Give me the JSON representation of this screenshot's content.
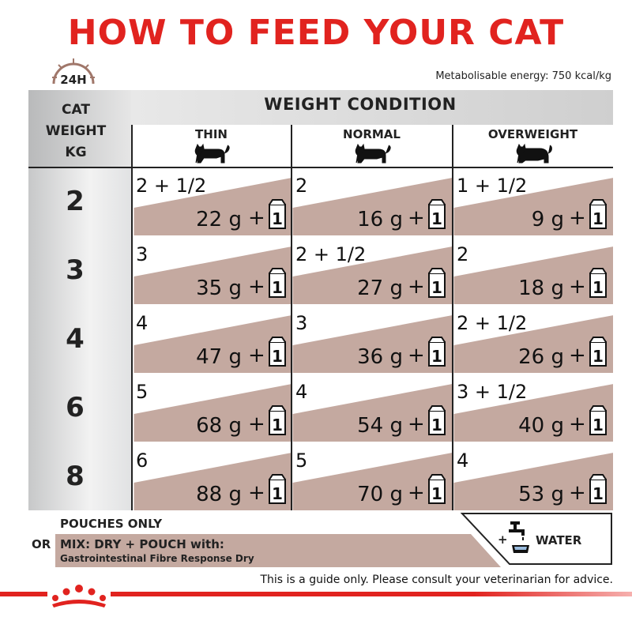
{
  "title": "HOW TO FEED YOUR CAT",
  "clock_label": "24H",
  "energy": "Metabolisable energy: 750 kcal/kg",
  "cat_weight_label": "CAT\nWEIGHT\nKG",
  "weight_condition": "WEIGHT CONDITION",
  "columns": [
    "THIN",
    "NORMAL",
    "OVERWEIGHT"
  ],
  "rows": [
    {
      "weight": "2",
      "cells": [
        {
          "pouch": "2 + 1/2",
          "dry": "22 g",
          "plus": "+"
        },
        {
          "pouch": "2",
          "dry": "16 g",
          "plus": "+"
        },
        {
          "pouch": "1 + 1/2",
          "dry": "9 g",
          "plus": "+"
        }
      ]
    },
    {
      "weight": "3",
      "cells": [
        {
          "pouch": "3",
          "dry": "35 g",
          "plus": "+"
        },
        {
          "pouch": "2 + 1/2",
          "dry": "27 g",
          "plus": "+"
        },
        {
          "pouch": "2",
          "dry": "18 g",
          "plus": "+"
        }
      ]
    },
    {
      "weight": "4",
      "cells": [
        {
          "pouch": "4",
          "dry": "47 g",
          "plus": "+"
        },
        {
          "pouch": "3",
          "dry": "36 g",
          "plus": "+"
        },
        {
          "pouch": "2 + 1/2",
          "dry": "26 g",
          "plus": "+"
        }
      ]
    },
    {
      "weight": "6",
      "cells": [
        {
          "pouch": "5",
          "dry": "68 g",
          "plus": "+"
        },
        {
          "pouch": "4",
          "dry": "54 g",
          "plus": "+"
        },
        {
          "pouch": "3 + 1/2",
          "dry": "40 g",
          "plus": "+"
        }
      ]
    },
    {
      "weight": "8",
      "cells": [
        {
          "pouch": "6",
          "dry": "88 g",
          "plus": "+"
        },
        {
          "pouch": "5",
          "dry": "70 g",
          "plus": "+"
        },
        {
          "pouch": "4",
          "dry": "53 g",
          "plus": "+"
        }
      ]
    }
  ],
  "pack_count": "1",
  "pouches_only": "POUCHES ONLY",
  "or": "OR",
  "mix": "MIX: DRY + POUCH with:",
  "product": "Gastrointestinal Fibre Response Dry",
  "water_plus": "+",
  "water": "WATER",
  "disclaimer": "This is a guide only. Please consult your veterinarian for advice.",
  "colors": {
    "brand_red": "#e1231f",
    "wedge": "#c4a9a0",
    "dark": "#222222"
  },
  "icons": [
    "clock-icon",
    "cat-icon",
    "dry-pack-icon",
    "water-tap-icon",
    "crown-logo-icon"
  ]
}
